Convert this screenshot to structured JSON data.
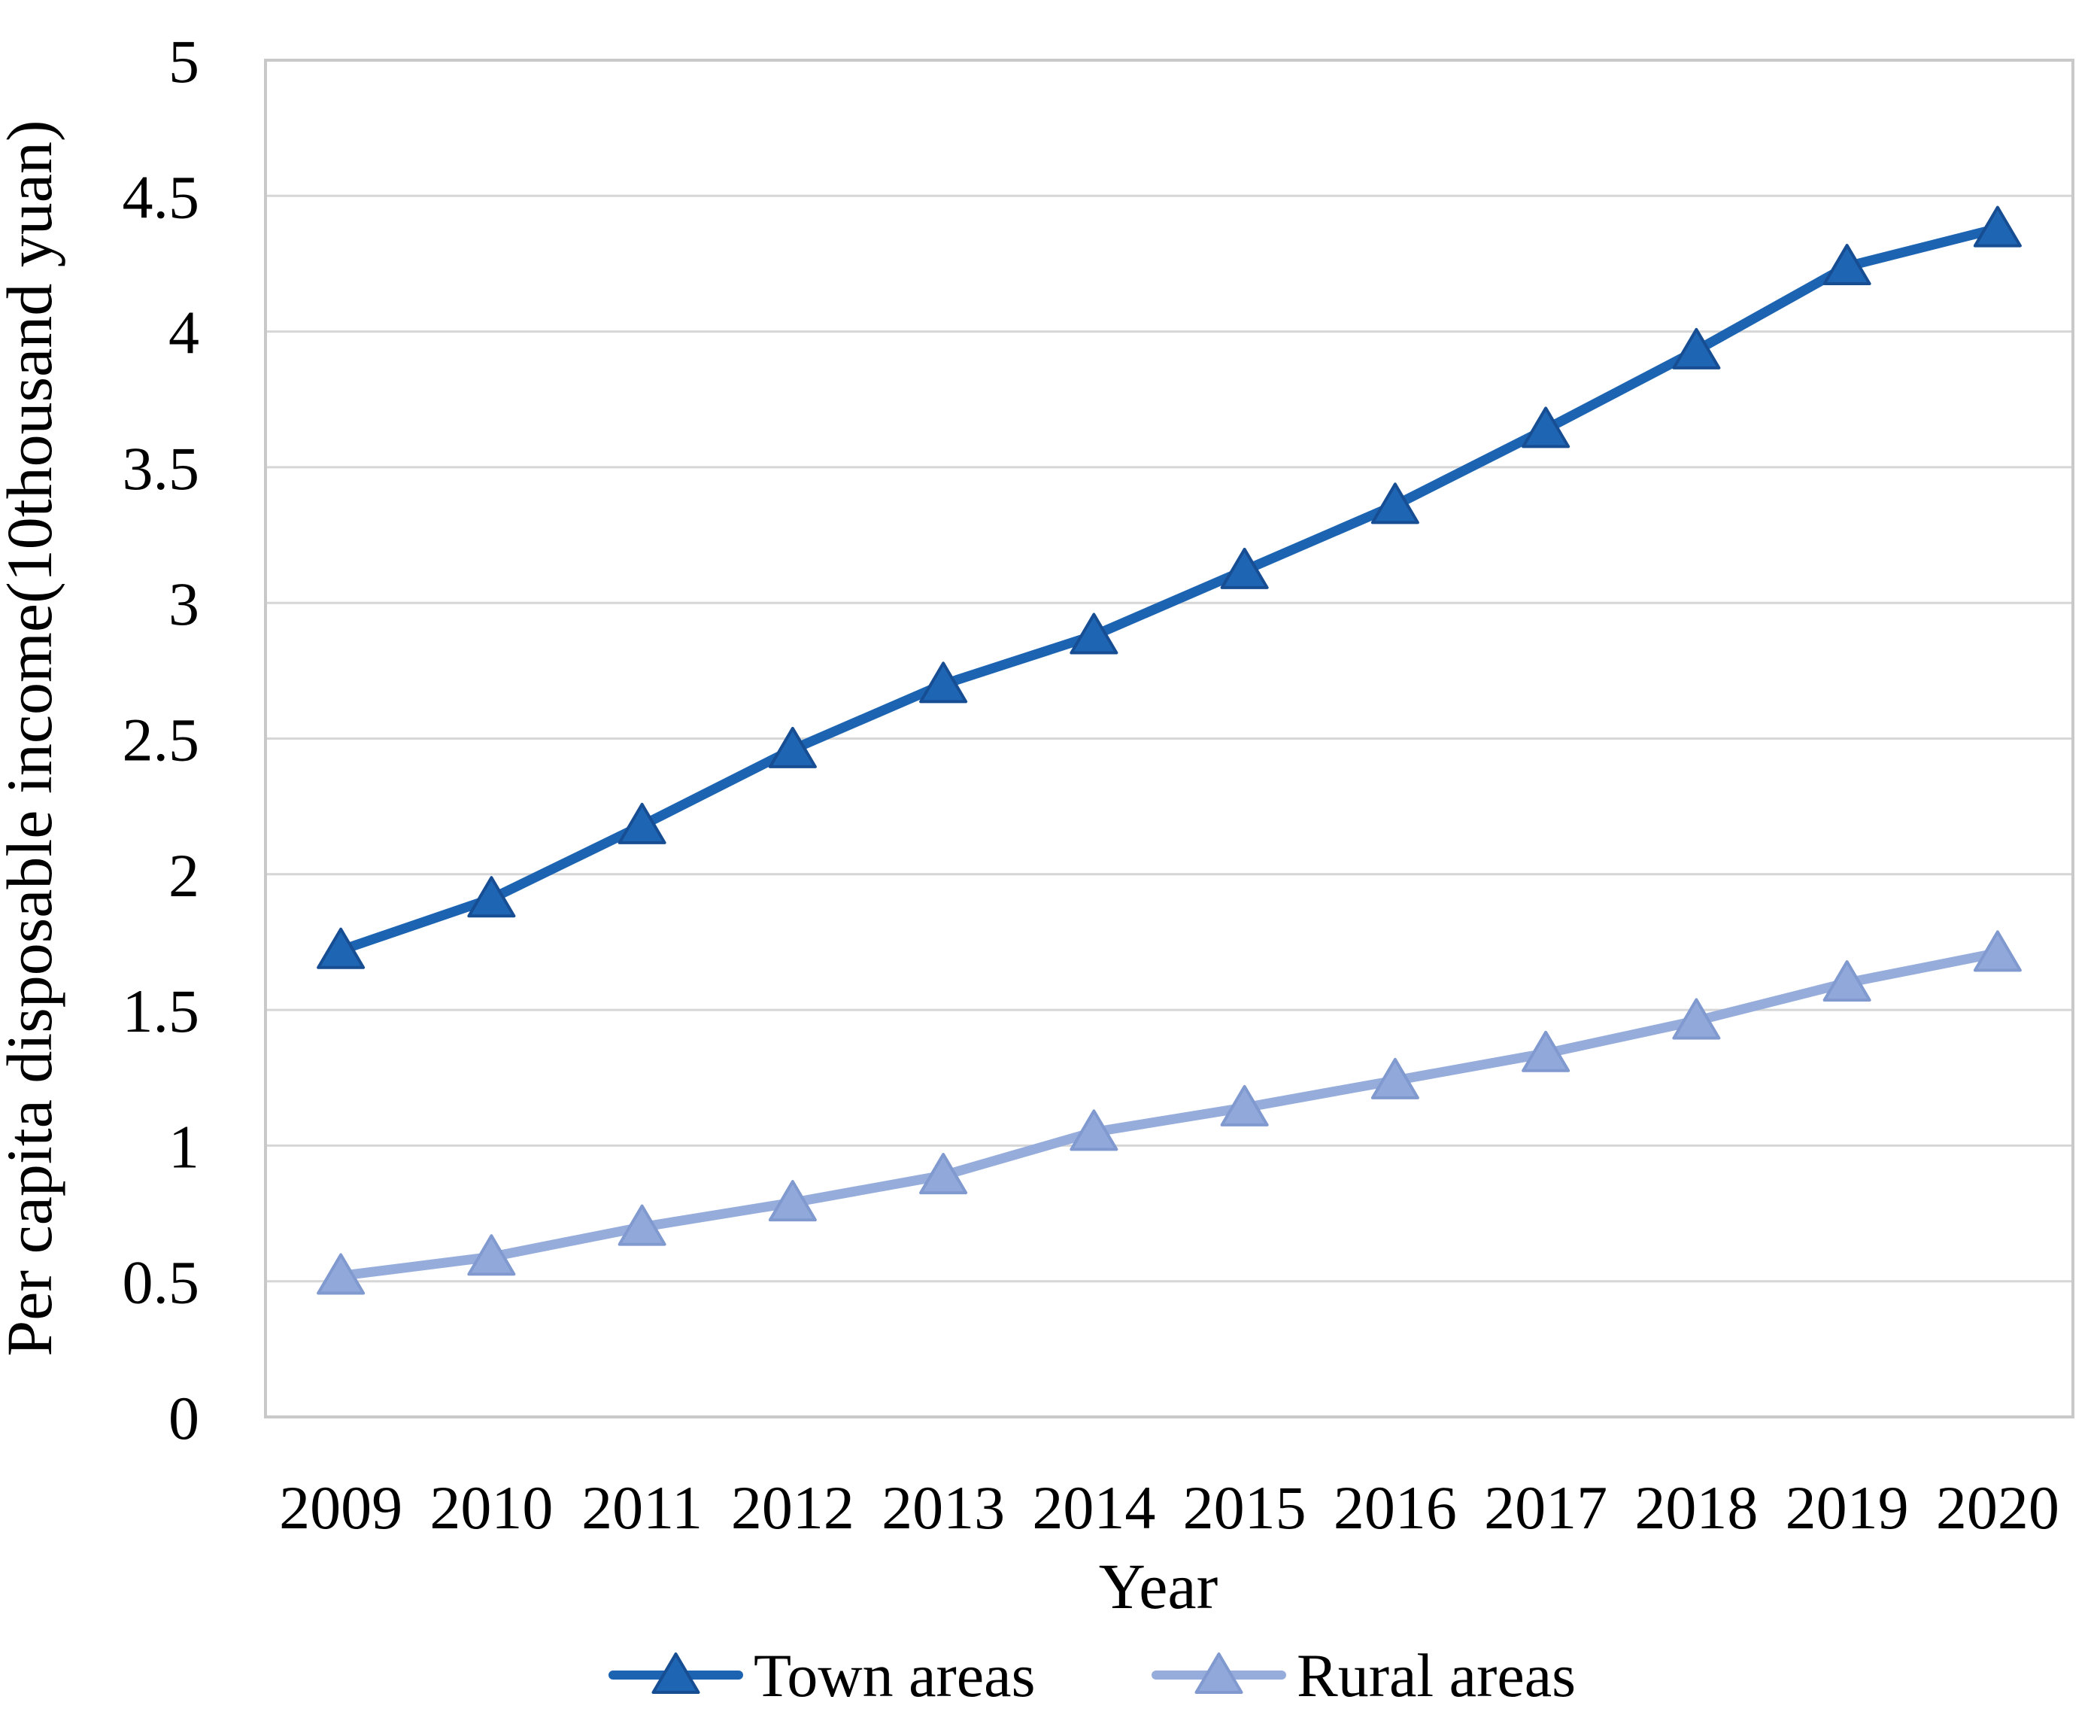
{
  "chart_data": {
    "type": "line",
    "title": "",
    "xlabel": "Year",
    "ylabel": "Per capita disposable income(10thousand yuan)",
    "categories": [
      "2009",
      "2010",
      "2011",
      "2012",
      "2013",
      "2014",
      "2015",
      "2016",
      "2017",
      "2018",
      "2019",
      "2020"
    ],
    "series": [
      {
        "name": "Town areas",
        "values": [
          1.72,
          1.91,
          2.18,
          2.46,
          2.7,
          2.88,
          3.12,
          3.36,
          3.64,
          3.93,
          4.24,
          4.38
        ],
        "line_color": "#1C64B2",
        "marker_fill": "#1E66B4",
        "marker_stroke": "#174E93",
        "marker": "triangle"
      },
      {
        "name": "Rural areas",
        "values": [
          0.52,
          0.59,
          0.7,
          0.79,
          0.89,
          1.05,
          1.14,
          1.24,
          1.34,
          1.46,
          1.6,
          1.71
        ],
        "line_color": "#96ADDC",
        "marker_fill": "#91A9DA",
        "marker_stroke": "#8099CF",
        "marker": "triangle"
      }
    ],
    "ylim": [
      0,
      5
    ],
    "y_tick_step": 0.5,
    "y_tick_labels": [
      "0",
      "0.5",
      "1",
      "1.5",
      "2",
      "2.5",
      "3",
      "3.5",
      "4",
      "4.5",
      "5"
    ],
    "grid": "horizontal",
    "gridline_color": "#D6D6D6",
    "axis_frame_color": "#C9C9C9",
    "legend_position": "bottom"
  }
}
